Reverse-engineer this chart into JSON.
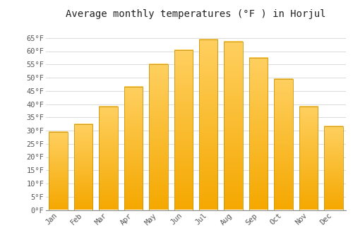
{
  "title": "Average monthly temperatures (°F ) in Horjul",
  "months": [
    "Jan",
    "Feb",
    "Mar",
    "Apr",
    "May",
    "Jun",
    "Jul",
    "Aug",
    "Sep",
    "Oct",
    "Nov",
    "Dec"
  ],
  "values": [
    29.5,
    32.5,
    39.0,
    46.5,
    55.0,
    60.5,
    64.5,
    63.5,
    57.5,
    49.5,
    39.0,
    31.5
  ],
  "bar_color_bottom": "#F5A800",
  "bar_color_top": "#FFD060",
  "bar_edge_color": "#C8960A",
  "background_color": "#FFFFFF",
  "grid_color": "#DDDDDD",
  "text_color": "#555555",
  "ylim": [
    0,
    70
  ],
  "yticks": [
    0,
    5,
    10,
    15,
    20,
    25,
    30,
    35,
    40,
    45,
    50,
    55,
    60,
    65
  ],
  "title_fontsize": 10,
  "tick_fontsize": 7.5,
  "font_family": "monospace"
}
